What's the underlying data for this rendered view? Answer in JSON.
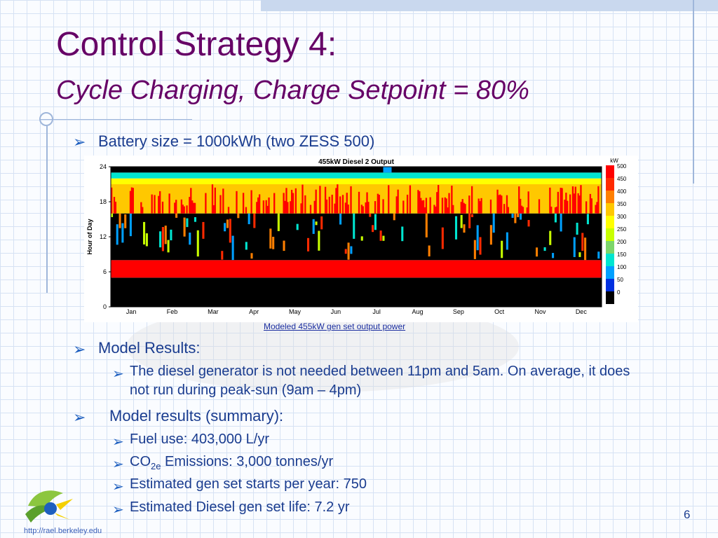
{
  "slide": {
    "title_line1": "Control Strategy 4:",
    "title_line2": "Cycle Charging, Charge Setpoint = 80%",
    "bullet1": "Battery size = 1000kWh (two ZESS 500)",
    "chart_caption": "Modeled 455kW gen set output power",
    "bullet2": "Model Results:",
    "bullet2_sub1_line1": "The diesel generator is not needed between 11pm and 5am.  On average, it does",
    "bullet2_sub1_line2": "not run during peak-sun (9am – 4pm)",
    "bullet3": "Model results (summary):",
    "bullet3_sub1": "Fuel use: 403,000 L/yr",
    "bullet3_sub2_prefix": "CO",
    "bullet3_sub2_subscript": "2e",
    "bullet3_sub2_rest": " Emissions: 3,000 tonnes/yr",
    "bullet3_sub3": "Estimated gen set starts per year: 750",
    "bullet3_sub4": "Estimated Diesel gen set life: 7.2 yr",
    "page_number": "6",
    "footer_url": "http://rael.berkeley.edu",
    "arrow_glyph": "➢"
  },
  "colors": {
    "title": "#660066",
    "text": "#1a3c8f",
    "arrow": "#1e5fbf"
  },
  "chart_data": {
    "type": "heatmap",
    "title": "455kW Diesel 2 Output",
    "ylabel": "Hour of Day",
    "y_ticks": [
      "24",
      "18",
      "12",
      "6",
      "0"
    ],
    "x_ticks": [
      "Jan",
      "Feb",
      "Mar",
      "Apr",
      "May",
      "Jun",
      "Jul",
      "Aug",
      "Sep",
      "Oct",
      "Nov",
      "Dec"
    ],
    "ylim": [
      0,
      24
    ],
    "colorbar_unit": "kW",
    "colorbar_ticks": [
      "500",
      "450",
      "400",
      "350",
      "300",
      "250",
      "200",
      "150",
      "100",
      "50",
      "0"
    ],
    "colorbar_colors": [
      "#ff0000",
      "#ff2a00",
      "#ff7f00",
      "#ffc800",
      "#ffff00",
      "#c8ff00",
      "#7cd66a",
      "#00e5d0",
      "#00a0ff",
      "#0030e0",
      "#000000"
    ],
    "hour_bands": [
      {
        "from": 0,
        "to": 5,
        "value": 0
      },
      {
        "from": 5,
        "to": 8,
        "value": 480
      },
      {
        "from": 8,
        "to": 16,
        "value": 0,
        "speckled": true
      },
      {
        "from": 16,
        "to": 21,
        "value": 360,
        "spiky": true
      },
      {
        "from": 21,
        "to": 22,
        "value": 280
      },
      {
        "from": 22,
        "to": 23,
        "value": 160
      },
      {
        "from": 23,
        "to": 24,
        "value": 0
      }
    ]
  }
}
